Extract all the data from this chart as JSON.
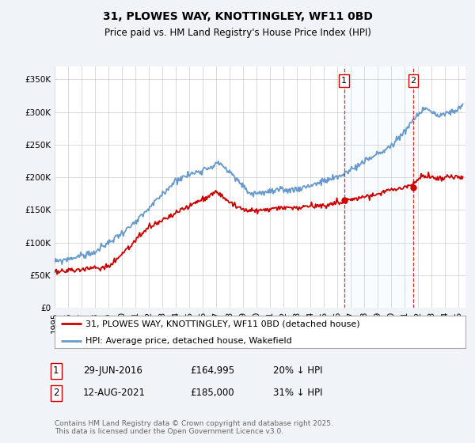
{
  "title": "31, PLOWES WAY, KNOTTINGLEY, WF11 0BD",
  "subtitle": "Price paid vs. HM Land Registry's House Price Index (HPI)",
  "ylabel_ticks": [
    "£0",
    "£50K",
    "£100K",
    "£150K",
    "£200K",
    "£250K",
    "£300K",
    "£350K"
  ],
  "ytick_vals": [
    0,
    50000,
    100000,
    150000,
    200000,
    250000,
    300000,
    350000
  ],
  "ylim": [
    0,
    370000
  ],
  "xlim_start": 1995.0,
  "xlim_end": 2025.5,
  "red_color": "#cc0000",
  "blue_color": "#6699cc",
  "shade_color": "#ddeeff",
  "marker1_x": 2016.49,
  "marker1_y": 164995,
  "marker2_x": 2021.62,
  "marker2_y": 185000,
  "legend_red": "31, PLOWES WAY, KNOTTINGLEY, WF11 0BD (detached house)",
  "legend_blue": "HPI: Average price, detached house, Wakefield",
  "table_row1": [
    "1",
    "29-JUN-2016",
    "£164,995",
    "20% ↓ HPI"
  ],
  "table_row2": [
    "2",
    "12-AUG-2021",
    "£185,000",
    "31% ↓ HPI"
  ],
  "footer": "Contains HM Land Registry data © Crown copyright and database right 2025.\nThis data is licensed under the Open Government Licence v3.0.",
  "bg_color": "#f0f4f8",
  "plot_bg": "#ffffff",
  "title_fontsize": 10,
  "subtitle_fontsize": 8.5,
  "tick_fontsize": 7.5,
  "legend_fontsize": 8,
  "table_fontsize": 8.5,
  "footer_fontsize": 6.5
}
